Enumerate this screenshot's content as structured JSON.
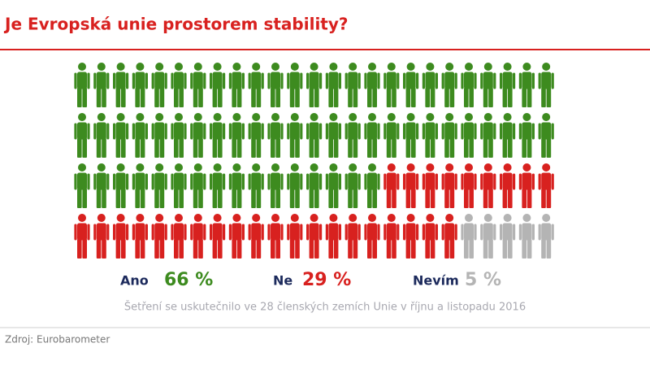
{
  "chart_data": {
    "type": "pictogram",
    "title": "Je Evropská unie prostorem stability?",
    "series": [
      {
        "name": "Ano",
        "color": "#3d8b1f",
        "values": [
          66
        ],
        "value_labels": [
          "66 %"
        ]
      },
      {
        "name": "Ne",
        "color": "#d8211f",
        "values": [
          29
        ],
        "value_labels": [
          "29 %"
        ]
      },
      {
        "name": "Nevím",
        "color": "#b4b4b4",
        "values": [
          5
        ],
        "value_labels": [
          "5 %"
        ]
      }
    ],
    "note": "Šetření se uskutečnilo ve 28 členských zemích Unie v říjnu a listopadu 2016",
    "source": "Zdroj: Eurobarometer"
  }
}
